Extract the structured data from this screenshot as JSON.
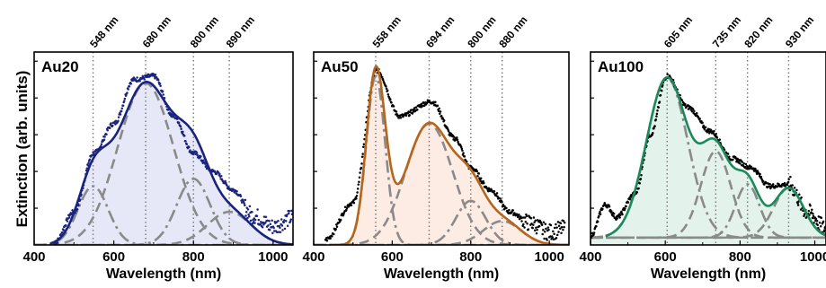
{
  "ylabel": "Extinction (arb. units)",
  "chart_data": [
    {
      "type": "line",
      "label": "Au20",
      "xlabel": "Wavelength (nm)",
      "xlim": [
        400,
        1050
      ],
      "xticks": [
        "400",
        "600",
        "800",
        "1000"
      ],
      "ylim": [
        0,
        1.05
      ],
      "peaks": [
        548,
        680,
        800,
        890
      ],
      "peak_labels": [
        "548 nm",
        "680 nm",
        "800 nm",
        "890 nm"
      ],
      "fit_color": "#1a237e",
      "fill_color": "#e6e8f7",
      "dot_color": "#1a237e",
      "components": [
        {
          "center": 548,
          "amplitude": 0.32,
          "width": 38
        },
        {
          "center": 680,
          "amplitude": 0.88,
          "width": 70
        },
        {
          "center": 800,
          "amplitude": 0.36,
          "width": 42
        },
        {
          "center": 890,
          "amplitude": 0.18,
          "width": 55
        }
      ],
      "data": {
        "x": [
          450,
          500,
          550,
          600,
          650,
          700,
          750,
          800,
          850,
          900,
          950,
          1000,
          1050
        ],
        "y": [
          0.01,
          0.18,
          0.5,
          0.66,
          0.9,
          0.92,
          0.7,
          0.5,
          0.4,
          0.3,
          0.16,
          0.1,
          0.15
        ]
      }
    },
    {
      "type": "line",
      "label": "Au50",
      "xlabel": "Wavelength (nm)",
      "xlim": [
        400,
        1050
      ],
      "xticks": [
        "400",
        "600",
        "800",
        "1000"
      ],
      "ylim": [
        0,
        1.05
      ],
      "peaks": [
        558,
        694,
        800,
        880
      ],
      "peak_labels": [
        "558 nm",
        "694 nm",
        "800 nm",
        "880 nm"
      ],
      "fit_color": "#b8651c",
      "fill_color": "#fdece3",
      "dot_color": "#000000",
      "components": [
        {
          "center": 558,
          "amplitude": 0.92,
          "width": 24
        },
        {
          "center": 694,
          "amplitude": 0.66,
          "width": 60
        },
        {
          "center": 800,
          "amplitude": 0.24,
          "width": 38
        },
        {
          "center": 880,
          "amplitude": 0.13,
          "width": 48
        }
      ],
      "data": {
        "x": [
          430,
          500,
          560,
          620,
          700,
          760,
          800,
          850,
          900,
          950,
          1000,
          1040
        ],
        "y": [
          0.03,
          0.23,
          0.95,
          0.7,
          0.78,
          0.58,
          0.42,
          0.3,
          0.18,
          0.12,
          0.07,
          0.09
        ]
      }
    },
    {
      "type": "line",
      "label": "Au100",
      "xlabel": "Wavelength (nm)",
      "xlim": [
        400,
        1030
      ],
      "xticks": [
        "400",
        "600",
        "800",
        "1000"
      ],
      "ylim": [
        0,
        1.05
      ],
      "peaks": [
        605,
        735,
        820,
        930
      ],
      "peak_labels": [
        "605 nm",
        "735 nm",
        "820 nm",
        "930 nm"
      ],
      "fit_color": "#1a8a5a",
      "fill_color": "#e3f2eb",
      "dot_color": "#000000",
      "components": [
        {
          "center": 605,
          "amplitude": 0.87,
          "width": 55
        },
        {
          "center": 735,
          "amplitude": 0.47,
          "width": 40
        },
        {
          "center": 820,
          "amplitude": 0.29,
          "width": 32
        },
        {
          "center": 930,
          "amplitude": 0.27,
          "width": 40
        }
      ],
      "baseline": 0.04,
      "data": {
        "x": [
          400,
          440,
          470,
          520,
          560,
          605,
          660,
          720,
          780,
          830,
          880,
          930,
          980,
          1030
        ],
        "y": [
          0.05,
          0.22,
          0.15,
          0.28,
          0.6,
          0.92,
          0.75,
          0.62,
          0.47,
          0.42,
          0.32,
          0.33,
          0.18,
          0.09
        ]
      }
    }
  ]
}
